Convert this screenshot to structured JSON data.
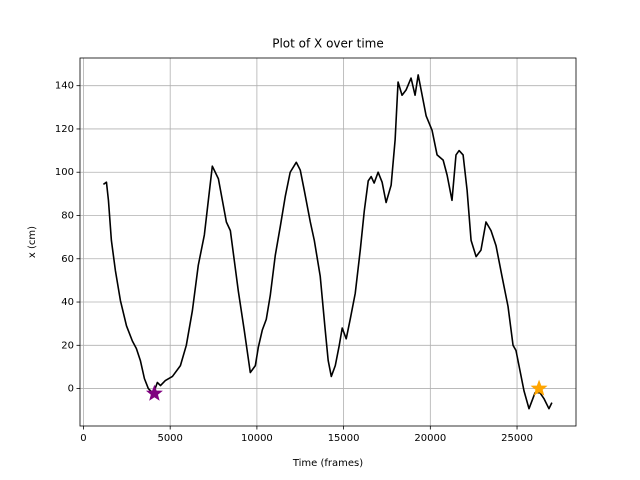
{
  "chart_data": {
    "type": "line",
    "title": "Plot of X over time",
    "xlabel": "Time (frames)",
    "ylabel": "x (cm)",
    "color": "#000000",
    "x": [
      1150,
      1325,
      1440,
      1610,
      1840,
      2130,
      2480,
      2820,
      3050,
      3280,
      3515,
      3740,
      4030,
      4260,
      4440,
      4720,
      5130,
      5590,
      5930,
      6280,
      6620,
      6970,
      7200,
      7430,
      7780,
      8010,
      8240,
      8470,
      8700,
      8930,
      9270,
      9620,
      9910,
      10080,
      10310,
      10540,
      10770,
      11060,
      11350,
      11640,
      11920,
      12270,
      12500,
      12730,
      13080,
      13310,
      13650,
      13940,
      14110,
      14290,
      14520,
      14750,
      14920,
      15150,
      15380,
      15670,
      15960,
      16190,
      16420,
      16590,
      16760,
      16990,
      17220,
      17450,
      17740,
      17970,
      18140,
      18370,
      18600,
      18890,
      19120,
      19300,
      19470,
      19760,
      20100,
      20390,
      20740,
      20970,
      21250,
      21480,
      21660,
      21890,
      22120,
      22350,
      22640,
      22920,
      23210,
      23500,
      23790,
      24130,
      24480,
      24770,
      24940,
      25170,
      25400,
      25690,
      26040,
      26320,
      26550,
      26840,
      27010
    ],
    "values": [
      94.4,
      95.4,
      87,
      68.5,
      54.6,
      40.7,
      29,
      22,
      18.5,
      13,
      4.6,
      0,
      -2.3,
      2.8,
      1.4,
      3.7,
      5.6,
      10.6,
      20,
      36,
      57,
      71,
      87,
      102.8,
      97,
      87,
      77,
      73,
      59,
      45,
      27,
      7.4,
      10.6,
      19,
      27,
      32,
      43,
      61.6,
      75,
      89,
      100,
      104.6,
      101,
      91.7,
      77,
      68.5,
      52,
      27,
      13,
      5.6,
      10.6,
      20,
      28,
      23,
      32,
      44,
      64,
      82,
      96,
      98,
      95,
      100,
      95.4,
      86,
      94,
      115,
      141.7,
      135.6,
      138,
      143.5,
      135.6,
      145,
      138,
      126,
      119.4,
      108,
      105.6,
      98.6,
      87,
      108,
      110,
      108,
      91.7,
      68.5,
      61,
      64,
      77,
      73,
      66,
      52,
      38,
      20,
      17.6,
      8.3,
      -1,
      -9.3,
      -1.9,
      -1.9,
      -4.6,
      -9.3,
      -6.5
    ],
    "points": [
      {
        "x": 4090,
        "y": -2.3,
        "color": "#800080"
      },
      {
        "x": 26270,
        "y": 0,
        "color": "#ffa500"
      }
    ],
    "xlim": [
      -200,
      28400
    ],
    "ylim": [
      -17.3,
      152.8
    ],
    "xticks": [
      0,
      5000,
      10000,
      15000,
      20000,
      25000
    ],
    "yticks": [
      0,
      20,
      40,
      60,
      80,
      100,
      120,
      140
    ],
    "grid": true
  }
}
